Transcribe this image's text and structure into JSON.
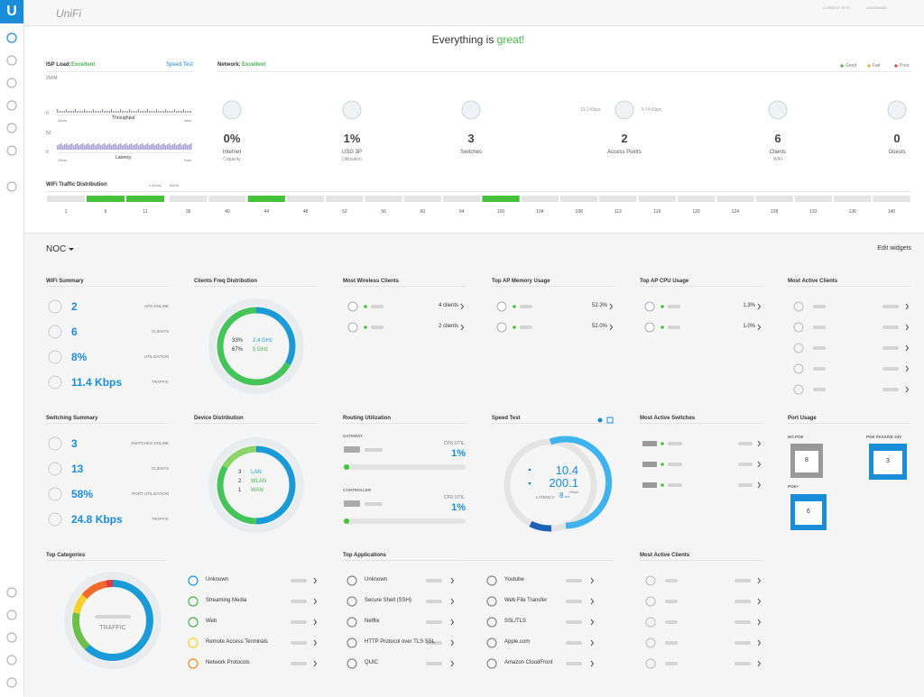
{
  "header": {
    "logo": "UniFi",
    "current_site_label": "CURRENT SITE",
    "username_label": "USERNAME"
  },
  "status": {
    "prefix": "Everything is ",
    "highlight": "great!"
  },
  "isp": {
    "title": "ISP Load:",
    "status": "Excellent",
    "speed_test": "Speed Test",
    "throughput_max": "200M",
    "throughput_min": "0",
    "throughput_label": "Throughput",
    "latency_max": "50",
    "latency_min": "0",
    "latency_label": "Latency",
    "start": "24hrs",
    "end": "Now"
  },
  "network": {
    "title": "Network:",
    "status": "Excellent",
    "legend": [
      "Good",
      "Fair",
      "Poor"
    ],
    "left_rate": "13.2 Kbps",
    "right_rate": "5.74 Kbps",
    "items": [
      {
        "value": "0%",
        "label": "Internet",
        "sub": "Capacity"
      },
      {
        "value": "1%",
        "label": "USG 3P",
        "sub": "Utilization"
      },
      {
        "value": "3",
        "label": "Switches"
      },
      {
        "value": "2",
        "label": "Access Points"
      },
      {
        "value": "6",
        "label": "Clients",
        "sub": "WiFi"
      },
      {
        "value": "0",
        "label": "Guests"
      }
    ]
  },
  "wifi": {
    "title": "WiFi Traffic Distribution",
    "band24": "2.4GHz",
    "band5": "5GHz",
    "channels24": [
      "1",
      "6",
      "11"
    ],
    "channels5": [
      "36",
      "40",
      "44",
      "48",
      "52",
      "56",
      "60",
      "64",
      "100",
      "104",
      "108",
      "112",
      "116",
      "120",
      "124",
      "128",
      "132",
      "136",
      "140"
    ]
  },
  "noc": {
    "title": "NOC",
    "edit": "Edit widgets"
  },
  "wifi_summary": {
    "title": "WiFi Summary",
    "rows": [
      {
        "value": "2",
        "label": "APS ONLINE"
      },
      {
        "value": "6",
        "label": "CLIENTS"
      },
      {
        "value": "8%",
        "label": "UTILIZATION"
      },
      {
        "value": "11.4 Kbps",
        "label": "TRAFFIC"
      }
    ]
  },
  "clients_freq": {
    "title": "Clients Freq Distribution",
    "items": [
      {
        "value": 33,
        "value_label": "33%",
        "label": "2.4 GHz"
      },
      {
        "value": 67,
        "value_label": "67%",
        "label": "5 GHz"
      }
    ]
  },
  "most_wireless": {
    "title": "Most Wireless Clients",
    "rows": [
      "4 clients",
      "2 clients"
    ]
  },
  "ap_memory": {
    "title": "Top AP Memory Usage",
    "rows": [
      "52.3%",
      "52.0%"
    ]
  },
  "ap_cpu": {
    "title": "Top AP CPU Usage",
    "rows": [
      "1.3%",
      "1.0%"
    ]
  },
  "active_clients": {
    "title": "Most Active Clients"
  },
  "switching_summary": {
    "title": "Switching Summary",
    "rows": [
      {
        "value": "3",
        "label": "SWITCHES ONLINE"
      },
      {
        "value": "13",
        "label": "CLIENTS"
      },
      {
        "value": "58%",
        "label": "PORT UTILIZATION"
      },
      {
        "value": "24.8 Kbps",
        "label": "TRAFFIC"
      }
    ]
  },
  "device_distribution": {
    "title": "Device Distribution",
    "items": [
      {
        "value": 3,
        "label": "LAN"
      },
      {
        "value": 2,
        "label": "WLAN"
      },
      {
        "value": 1,
        "label": "WAN"
      }
    ]
  },
  "routing": {
    "title": "Routing Utilization",
    "gateway": "GATEWAY",
    "controller": "CONTROLLER",
    "cpu_label": "CPU UTIL.",
    "gateway_cpu": "1%",
    "controller_cpu": "1%"
  },
  "speed_test": {
    "title": "Speed Test",
    "down": "10.4",
    "up": "200.1",
    "unit": "Mbps",
    "latency_label": "LATENCY",
    "latency": "8",
    "latency_unit": "ms"
  },
  "active_switches": {
    "title": "Most Active Switches"
  },
  "port_usage": {
    "title": "Port Usage",
    "no_poe": "NO POE",
    "no_poe_count": "8",
    "poe_passive": "POE PASSIVE 24V",
    "poe_passive_count": "3",
    "poe_plus": "POE+",
    "poe_plus_count": "6"
  },
  "top_categories": {
    "title": "Top Categories",
    "center": "TRAFFIC",
    "items": [
      "Unknown",
      "Streaming Media",
      "Web",
      "Remote Access Terminals",
      "Network Protocols"
    ]
  },
  "top_applications": {
    "title": "Top Applications",
    "items": [
      "Unknown",
      "Secure Shell (SSH)",
      "Netflix",
      "HTTP Protocol over TLS SSL",
      "QUIC",
      "Youtube",
      "Web File Transfer",
      "SSL/TLS",
      "Apple.com",
      "Amazon CloudFront"
    ]
  },
  "active_clients2": {
    "title": "Most Active Clients"
  }
}
